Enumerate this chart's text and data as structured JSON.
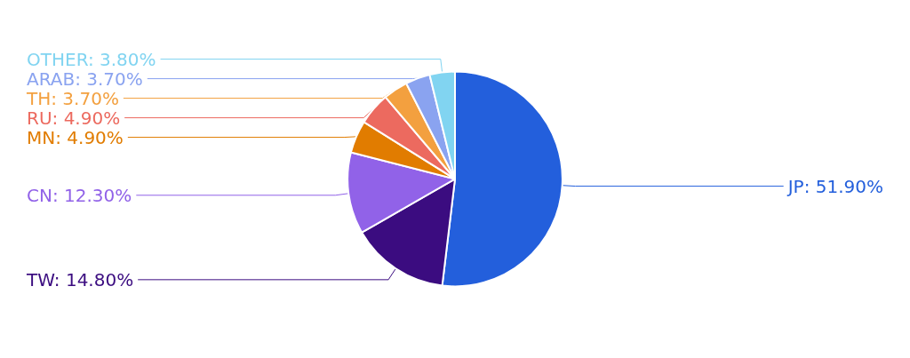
{
  "chart_data": {
    "type": "pie",
    "categories": [
      "JP",
      "TW",
      "CN",
      "MN",
      "RU",
      "TH",
      "ARAB",
      "OTHER"
    ],
    "values": [
      51.9,
      14.8,
      12.3,
      4.9,
      4.9,
      3.7,
      3.7,
      3.8
    ],
    "value_labels": [
      "51.90%",
      "14.80%",
      "12.30%",
      "4.90%",
      "4.90%",
      "3.70%",
      "3.70%",
      "3.80%"
    ],
    "colors": [
      "#235fdc",
      "#3b0c80",
      "#9162e8",
      "#e17c00",
      "#ec6a5f",
      "#f3a03f",
      "#8aa3f0",
      "#81d4f1"
    ]
  }
}
